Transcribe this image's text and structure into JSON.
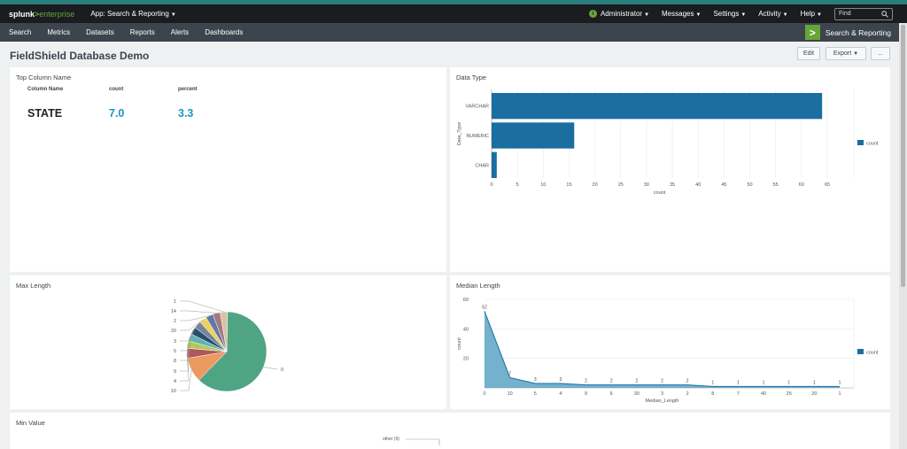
{
  "topbar": {
    "logo_prefix": "splunk",
    "logo_gt": ">",
    "logo_suffix": "enterprise",
    "app_menu": "App: Search & Reporting",
    "items": [
      "Administrator",
      "Messages",
      "Settings",
      "Activity",
      "Help"
    ],
    "find_placeholder": "Find",
    "info_glyph": "i"
  },
  "nav": {
    "items": [
      "Search",
      "Metrics",
      "Datasets",
      "Reports",
      "Alerts",
      "Dashboards"
    ],
    "app_name": "Search & Reporting",
    "app_logo_glyph": ">"
  },
  "dashboard": {
    "title": "FieldShield Database Demo",
    "edit_label": "Edit",
    "export_label": "Export",
    "more_label": "..."
  },
  "panels": {
    "top_column": {
      "title": "Top Column Name",
      "headers": [
        "Column Name",
        "count",
        "percent"
      ],
      "row": [
        "STATE",
        "7.0",
        "3.3"
      ],
      "value_color": "#1e93c6"
    },
    "data_type": {
      "title": "Data Type"
    },
    "max_length": {
      "title": "Max Length"
    },
    "median_length": {
      "title": "Median Length"
    },
    "min_value": {
      "title": "Min Value",
      "visible_label": "other (9)"
    }
  },
  "chart_data": [
    {
      "type": "bar",
      "orientation": "horizontal",
      "categories": [
        "VARCHAR",
        "NUMERIC",
        "CHAR"
      ],
      "series": [
        {
          "name": "count",
          "values": [
            64,
            16,
            1
          ]
        }
      ],
      "xlabel": "count",
      "ylabel": "Data_Type",
      "xlim": [
        0,
        65
      ],
      "xticks": [
        0,
        5,
        10,
        15,
        20,
        25,
        30,
        35,
        40,
        45,
        50,
        55,
        60,
        65
      ],
      "legend": "right",
      "color": "#1a6ea0"
    },
    {
      "type": "pie",
      "labels": [
        "0",
        "10",
        "4",
        "9",
        "8",
        "5",
        "3",
        "20",
        "2",
        "14",
        "1"
      ],
      "values": [
        62,
        10,
        4,
        3,
        3,
        3,
        3,
        3,
        3,
        3,
        3
      ],
      "colors": [
        "#4fa484",
        "#ec9960",
        "#af575a",
        "#b6c75a",
        "#62b3b2",
        "#294e70",
        "#738795",
        "#edd064",
        "#5f7aa6",
        "#a7787d",
        "#d6c3a4"
      ]
    },
    {
      "type": "area",
      "categories": [
        "0",
        "10",
        "5",
        "4",
        "9",
        "6",
        "30",
        "3",
        "2",
        "8",
        "7",
        "40",
        "25",
        "20",
        "1"
      ],
      "series": [
        {
          "name": "count",
          "values": [
            52,
            7,
            3,
            3,
            2,
            2,
            2,
            2,
            2,
            1,
            1,
            1,
            1,
            1,
            1
          ]
        }
      ],
      "data_labels": [
        "52",
        "7",
        "3",
        "3",
        "2",
        "2",
        "2",
        "2",
        "2",
        "1",
        "1",
        "1",
        "1",
        "1",
        "1"
      ],
      "xlabel": "Median_Length",
      "ylabel": "count",
      "ylim": [
        0,
        60
      ],
      "yticks": [
        20,
        40,
        60
      ],
      "legend": "right",
      "color": "#1a6ea0",
      "fill": "#5ba3c4"
    }
  ]
}
